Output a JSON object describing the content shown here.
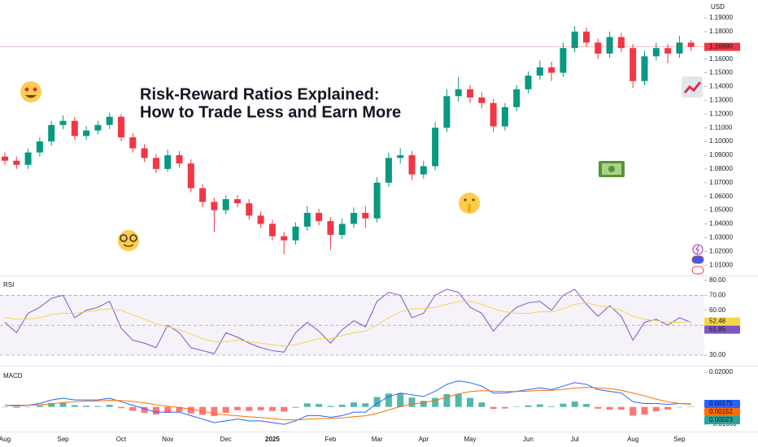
{
  "chart_data": [
    {
      "type": "candlestick",
      "title_lines": [
        "Risk-Reward Ratios Explained:",
        "How to Trade Less and Earn More"
      ],
      "currency": "USD",
      "categories": [
        "Aug",
        null,
        null,
        null,
        null,
        "Sep",
        null,
        null,
        null,
        null,
        "Oct",
        null,
        null,
        null,
        "Nov",
        null,
        null,
        null,
        null,
        "Dec",
        null,
        null,
        null,
        "2025",
        null,
        null,
        null,
        null,
        "Feb",
        null,
        null,
        null,
        "Mar",
        null,
        null,
        null,
        "Apr",
        null,
        null,
        null,
        "May",
        null,
        null,
        null,
        null,
        "Jun",
        null,
        null,
        null,
        "Jul",
        null,
        null,
        null,
        null,
        "Aug",
        null,
        null,
        null,
        "Sep",
        null
      ],
      "open": [
        1.089,
        1.086,
        1.083,
        1.092,
        1.1,
        1.112,
        1.115,
        1.104,
        1.108,
        1.112,
        1.118,
        1.103,
        1.095,
        1.088,
        1.08,
        1.09,
        1.084,
        1.066,
        1.056,
        1.05,
        1.058,
        1.055,
        1.046,
        1.04,
        1.031,
        1.028,
        1.038,
        1.048,
        1.042,
        1.032,
        1.04,
        1.048,
        1.044,
        1.07,
        1.088,
        1.09,
        1.076,
        1.082,
        1.11,
        1.133,
        1.138,
        1.132,
        1.128,
        1.111,
        1.125,
        1.138,
        1.148,
        1.154,
        1.15,
        1.168,
        1.18,
        1.172,
        1.164,
        1.176,
        1.168,
        1.144,
        1.162,
        1.168,
        1.164,
        1.172
      ],
      "high": [
        1.092,
        1.089,
        1.095,
        1.103,
        1.115,
        1.119,
        1.118,
        1.111,
        1.115,
        1.121,
        1.12,
        1.106,
        1.098,
        1.091,
        1.094,
        1.093,
        1.087,
        1.069,
        1.059,
        1.061,
        1.061,
        1.058,
        1.049,
        1.043,
        1.034,
        1.041,
        1.053,
        1.051,
        1.045,
        1.044,
        1.052,
        1.053,
        1.074,
        1.092,
        1.095,
        1.093,
        1.086,
        1.114,
        1.138,
        1.147,
        1.141,
        1.136,
        1.131,
        1.128,
        1.141,
        1.151,
        1.159,
        1.158,
        1.172,
        1.184,
        1.183,
        1.175,
        1.18,
        1.179,
        1.171,
        1.166,
        1.172,
        1.171,
        1.177,
        1.174
      ],
      "low": [
        1.083,
        1.08,
        1.08,
        1.089,
        1.097,
        1.109,
        1.101,
        1.101,
        1.105,
        1.109,
        1.1,
        1.092,
        1.085,
        1.077,
        1.078,
        1.081,
        1.063,
        1.052,
        1.034,
        1.047,
        1.052,
        1.043,
        1.037,
        1.028,
        1.018,
        1.025,
        1.035,
        1.039,
        1.021,
        1.029,
        1.037,
        1.037,
        1.041,
        1.067,
        1.084,
        1.072,
        1.073,
        1.079,
        1.107,
        1.129,
        1.128,
        1.124,
        1.107,
        1.108,
        1.122,
        1.135,
        1.145,
        1.144,
        1.147,
        1.165,
        1.169,
        1.16,
        1.161,
        1.165,
        1.139,
        1.141,
        1.159,
        1.157,
        1.161,
        1.166
      ],
      "close": [
        1.086,
        1.083,
        1.092,
        1.1,
        1.112,
        1.115,
        1.104,
        1.108,
        1.112,
        1.118,
        1.103,
        1.095,
        1.088,
        1.08,
        1.09,
        1.084,
        1.066,
        1.056,
        1.05,
        1.058,
        1.055,
        1.046,
        1.04,
        1.031,
        1.028,
        1.038,
        1.048,
        1.042,
        1.032,
        1.04,
        1.048,
        1.044,
        1.07,
        1.088,
        1.09,
        1.076,
        1.082,
        1.11,
        1.133,
        1.138,
        1.132,
        1.128,
        1.111,
        1.125,
        1.138,
        1.148,
        1.154,
        1.15,
        1.168,
        1.18,
        1.172,
        1.164,
        1.176,
        1.168,
        1.144,
        1.162,
        1.168,
        1.164,
        1.172,
        1.1689
      ],
      "up_color": "#089981",
      "down_color": "#f23645",
      "ylim": [
        1.003,
        1.203
      ],
      "yticks": [
        {
          "value": 1.19,
          "label": "1.19000"
        },
        {
          "value": 1.18,
          "label": "1.18000"
        },
        {
          "value": 1.16,
          "label": "1.16000"
        },
        {
          "value": 1.15,
          "label": "1.15000"
        },
        {
          "value": 1.14,
          "label": "1.14000"
        },
        {
          "value": 1.13,
          "label": "1.13000"
        },
        {
          "value": 1.12,
          "label": "1.12000"
        },
        {
          "value": 1.11,
          "label": "1.11000"
        },
        {
          "value": 1.1,
          "label": "1.10000"
        },
        {
          "value": 1.09,
          "label": "1.09000"
        },
        {
          "value": 1.08,
          "label": "1.08000"
        },
        {
          "value": 1.07,
          "label": "1.07000"
        },
        {
          "value": 1.06,
          "label": "1.06000"
        },
        {
          "value": 1.05,
          "label": "1.05000"
        },
        {
          "value": 1.04,
          "label": "1.04000"
        },
        {
          "value": 1.03,
          "label": "1.03000"
        },
        {
          "value": 1.02,
          "label": "1.02000"
        },
        {
          "value": 1.01,
          "label": "1.01000"
        }
      ],
      "last_price": {
        "value": 1.1689,
        "label": "1.16890"
      },
      "last_price_color": "#f23645"
    },
    {
      "type": "line",
      "title": "RSI",
      "series": [
        {
          "color": "#7e57c2",
          "values": [
            52,
            45,
            58,
            62,
            68,
            70,
            55,
            60,
            62,
            66,
            48,
            40,
            38,
            35,
            50,
            45,
            35,
            33,
            31,
            45,
            42,
            38,
            35,
            33,
            32,
            45,
            52,
            46,
            38,
            47,
            53,
            49,
            66,
            72,
            70,
            55,
            58,
            70,
            74,
            72,
            62,
            58,
            46,
            55,
            62,
            65,
            66,
            60,
            70,
            74,
            64,
            56,
            63,
            56,
            40,
            52,
            54,
            50,
            55,
            51.95
          ]
        },
        {
          "color": "#f7d54a",
          "values": [
            55,
            54,
            54,
            55,
            57,
            58,
            58,
            59,
            60,
            61,
            60,
            57,
            54,
            51,
            49,
            47,
            44,
            41,
            39,
            39,
            40,
            39,
            38,
            37,
            36,
            37,
            39,
            41,
            41,
            43,
            45,
            46,
            50,
            55,
            59,
            61,
            61,
            62,
            64,
            66,
            66,
            64,
            61,
            59,
            58,
            58,
            59,
            59,
            61,
            64,
            65,
            63,
            62,
            60,
            56,
            54,
            53,
            52,
            52,
            52.48
          ]
        }
      ],
      "ylim": [
        24,
        82.7
      ],
      "yticks": [
        {
          "value": 80,
          "label": "80.00"
        },
        {
          "value": 70,
          "label": "70.00"
        },
        {
          "value": 60,
          "label": "60.00"
        },
        {
          "value": 30,
          "label": "30.00"
        }
      ],
      "band": [
        30,
        70
      ],
      "midline": 50,
      "band_color": "#7e57c2"
    },
    {
      "type": "line",
      "title": "MACD",
      "series": [
        {
          "color": "#2962ff",
          "values": [
            0.001,
            0.0005,
            0.001,
            0.002,
            0.004,
            0.005,
            0.004,
            0.004,
            0.004,
            0.005,
            0.003,
            0.001,
            -0.001,
            -0.003,
            -0.003,
            -0.003,
            -0.005,
            -0.007,
            -0.009,
            -0.008,
            -0.007,
            -0.008,
            -0.008,
            -0.009,
            -0.01,
            -0.008,
            -0.005,
            -0.005,
            -0.006,
            -0.005,
            -0.003,
            -0.003,
            0.002,
            0.006,
            0.008,
            0.007,
            0.006,
            0.009,
            0.013,
            0.015,
            0.014,
            0.012,
            0.008,
            0.008,
            0.009,
            0.01,
            0.011,
            0.01,
            0.012,
            0.014,
            0.013,
            0.01,
            0.009,
            0.008,
            0.003,
            0.002,
            0.002,
            0.0015,
            0.002,
            0.00175
          ]
        },
        {
          "color": "#ff6d00",
          "values": [
            0.001,
            0.001,
            0.001,
            0.0012,
            0.0018,
            0.0025,
            0.003,
            0.0033,
            0.0035,
            0.0038,
            0.0037,
            0.0032,
            0.0024,
            0.0013,
            0.0004,
            -0.0003,
            -0.0013,
            -0.0025,
            -0.0038,
            -0.0046,
            -0.0051,
            -0.0057,
            -0.0061,
            -0.0067,
            -0.0073,
            -0.0075,
            -0.0071,
            -0.0067,
            -0.0066,
            -0.0063,
            -0.0056,
            -0.0051,
            -0.0037,
            -0.0017,
            0.0002,
            0.0016,
            0.0025,
            0.0038,
            0.0056,
            0.0075,
            0.0088,
            0.0094,
            0.0091,
            0.0089,
            0.0089,
            0.0091,
            0.0095,
            0.0096,
            0.0101,
            0.0109,
            0.0113,
            0.011,
            0.0106,
            0.0096,
            0.008,
            0.0064,
            0.0045,
            0.003,
            0.002,
            0.00152
          ]
        }
      ],
      "histogram": {
        "color": "#26a69a",
        "negative_color": "#ff5252",
        "values": [
          0,
          -0.0005,
          0,
          0.0008,
          0.0022,
          0.0025,
          0.001,
          0.0007,
          0.0005,
          0.0012,
          -0.0007,
          -0.0022,
          -0.0034,
          -0.0043,
          -0.0034,
          -0.0027,
          -0.0037,
          -0.0045,
          -0.0052,
          -0.0034,
          -0.0019,
          -0.0023,
          -0.0019,
          -0.0023,
          -0.0027,
          -0.0005,
          0.0021,
          0.0017,
          0.0006,
          0.0013,
          0.0026,
          0.0021,
          0.0057,
          0.0077,
          0.0078,
          0.0054,
          0.0035,
          0.0052,
          0.0074,
          0.0075,
          0.0052,
          0.0026,
          -0.0011,
          -0.0009,
          0.0001,
          0.0009,
          0.0015,
          0.0004,
          0.0019,
          0.0031,
          0.0017,
          -0.001,
          -0.0016,
          -0.0016,
          -0.005,
          -0.0044,
          -0.0025,
          -0.0015,
          0,
          0.00023
        ]
      },
      "ylim": [
        -0.0137,
        0.0228
      ],
      "yticks": [
        {
          "value": 0.02,
          "label": "0.02000"
        },
        {
          "value": -0.01,
          "label": "−0.01000"
        }
      ]
    }
  ]
}
